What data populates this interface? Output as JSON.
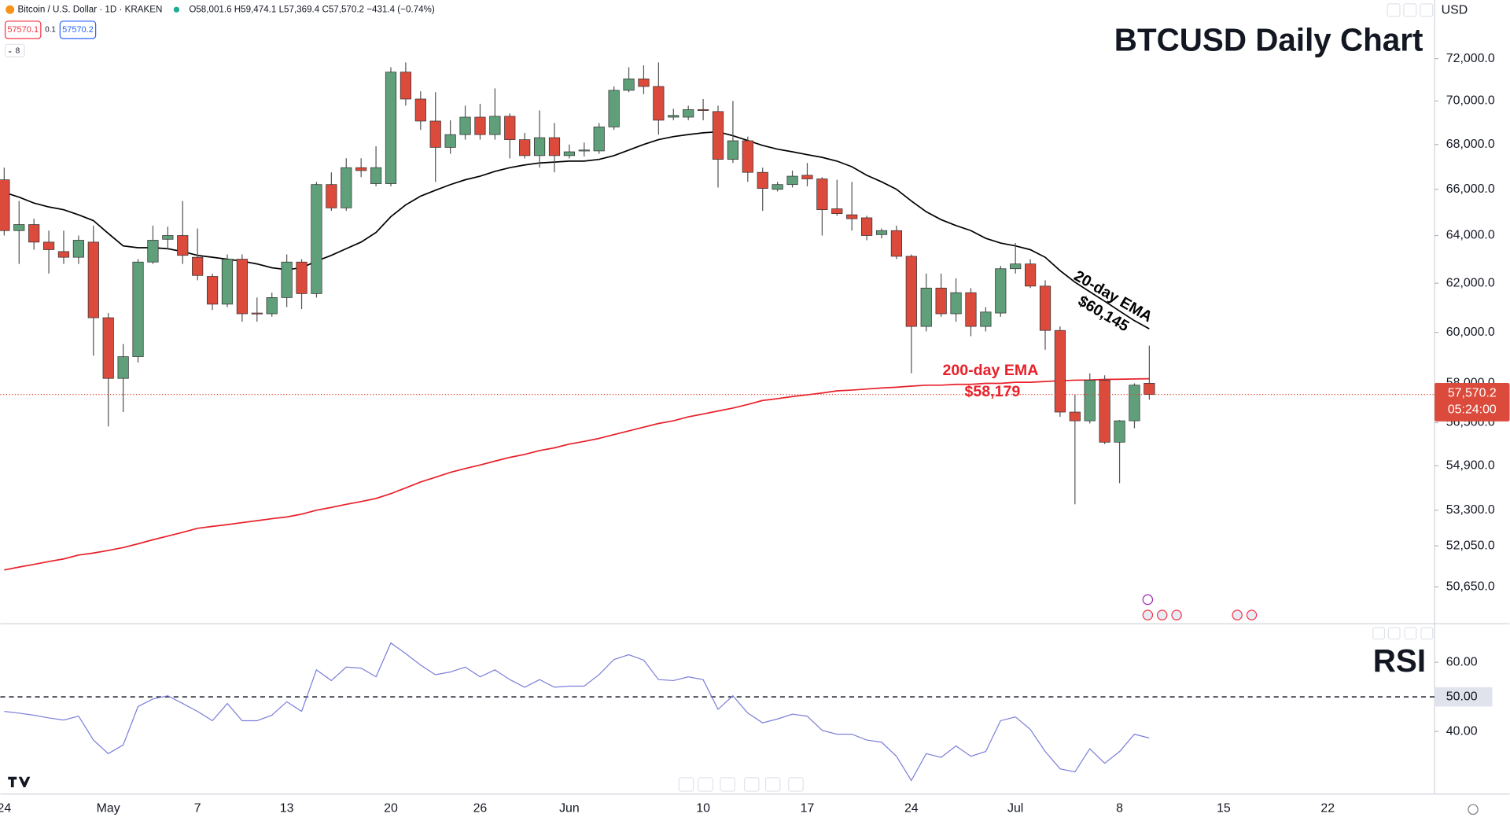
{
  "chart_data": [
    {
      "type": "candlestick",
      "title": "BTCUSD Daily Chart",
      "symbol": "Bitcoin / U.S. Dollar · 1D · KRAKEN",
      "ohlc_text": "O58,001.6 H59,474.1 L57,369.4 C57,570.2 −431.4 (−0.74%)",
      "bid": "57570.1",
      "spread": "0.1",
      "ask": "57570.2",
      "indicator_count": "8",
      "currency": "USD",
      "price_label": "57,570.2",
      "countdown": "05:24:00",
      "up_color": "#5f9f7a",
      "down_color": "#dc4a3b",
      "wick_color": "#555555",
      "yscale": "log",
      "ylim": [
        49420,
        74870
      ],
      "yticks": [
        {
          "value": 72000,
          "label": "72,000.0"
        },
        {
          "value": 70000,
          "label": "70,000.0"
        },
        {
          "value": 68000,
          "label": "68,000.0"
        },
        {
          "value": 66000,
          "label": "66,000.0"
        },
        {
          "value": 64000,
          "label": "64,000.0"
        },
        {
          "value": 62000,
          "label": "62,000.0"
        },
        {
          "value": 60000,
          "label": "60,000.0"
        },
        {
          "value": 58000,
          "label": "58,000.0"
        },
        {
          "value": 56500,
          "label": "56,500.0"
        },
        {
          "value": 54900,
          "label": "54,900.0"
        },
        {
          "value": 53300,
          "label": "53,300.0"
        },
        {
          "value": 52050,
          "label": "52,050.0"
        },
        {
          "value": 50650,
          "label": "50,650.0"
        }
      ],
      "categories": [
        "24",
        null,
        null,
        null,
        null,
        null,
        null,
        "May",
        null,
        null,
        null,
        null,
        null,
        "7",
        null,
        null,
        null,
        null,
        null,
        "13",
        null,
        null,
        null,
        null,
        null,
        null,
        "20",
        null,
        null,
        null,
        null,
        null,
        "26",
        null,
        null,
        null,
        null,
        null,
        "Jun",
        null,
        null,
        null,
        null,
        null,
        null,
        null,
        null,
        "10",
        null,
        null,
        null,
        null,
        null,
        null,
        "17",
        null,
        null,
        null,
        null,
        null,
        null,
        "24",
        null,
        null,
        null,
        null,
        null,
        null,
        "Jul",
        null,
        null,
        null,
        null,
        null,
        null,
        "8",
        null,
        null,
        null,
        null,
        null,
        null,
        "15",
        null,
        null,
        null,
        null,
        null,
        null,
        "22",
        null,
        null,
        null,
        null,
        null,
        null,
        null
      ],
      "open": [
        66420,
        64210,
        64470,
        63720,
        63320,
        63080,
        63720,
        60590,
        58190,
        59040,
        62880,
        63840,
        64000,
        63080,
        62280,
        61140,
        63000,
        60780,
        60750,
        61410,
        62880,
        61570,
        66210,
        65190,
        66960,
        66250,
        66250,
        71360,
        70090,
        69070,
        67870,
        68450,
        69250,
        68450,
        69290,
        68220,
        67500,
        68310,
        67500,
        67710,
        67710,
        68800,
        70500,
        71040,
        70680,
        69250,
        69250,
        69600,
        69510,
        67330,
        68170,
        66750,
        66000,
        66210,
        66620,
        66460,
        65150,
        64890,
        64760,
        64040,
        64210,
        63120,
        60240,
        61800,
        60750,
        61610,
        60240,
        60780,
        62600,
        62800,
        61880,
        60080,
        56900,
        56570,
        58120,
        55770,
        56570,
        58001.6,
        null,
        null,
        null,
        null,
        null,
        null,
        null,
        null,
        null,
        null,
        null,
        null,
        null,
        null,
        null,
        null,
        null,
        null,
        null
      ],
      "high": [
        66960,
        65490,
        64720,
        64210,
        64210,
        64000,
        64420,
        60780,
        59540,
        63000,
        64420,
        64380,
        65490,
        64300,
        62400,
        63200,
        63200,
        61410,
        61610,
        63200,
        63000,
        66330,
        66750,
        67380,
        67380,
        67920,
        71590,
        71820,
        70450,
        70410,
        69110,
        69780,
        69870,
        70590,
        69420,
        68530,
        69560,
        68980,
        68000,
        68090,
        68980,
        70680,
        71590,
        71680,
        71820,
        69640,
        69780,
        70090,
        69780,
        70000,
        68360,
        66960,
        66330,
        66830,
        67170,
        66540,
        66420,
        66330,
        64850,
        64300,
        64420,
        63200,
        62400,
        62400,
        62200,
        61800,
        61020,
        62720,
        63680,
        63000,
        62120,
        60240,
        57560,
        58390,
        58310,
        56600,
        58000,
        59474.1,
        null,
        null,
        null,
        null,
        null,
        null,
        null,
        null,
        null,
        null,
        null,
        null,
        null,
        null,
        null,
        null,
        null,
        null,
        null
      ],
      "low": [
        64000,
        62800,
        63400,
        62400,
        62800,
        62800,
        59080,
        56360,
        56900,
        58810,
        62800,
        63400,
        62800,
        62120,
        60900,
        61020,
        60430,
        60430,
        60630,
        61020,
        60940,
        61410,
        65060,
        65060,
        66540,
        66130,
        66130,
        69780,
        68670,
        66330,
        67580,
        68220,
        68220,
        68220,
        67370,
        67370,
        66960,
        66750,
        67370,
        67460,
        67580,
        68670,
        70410,
        70320,
        68450,
        69110,
        69110,
        69110,
        66080,
        67170,
        66330,
        65060,
        65910,
        66080,
        66130,
        64000,
        64850,
        64210,
        63800,
        63880,
        63000,
        58390,
        60040,
        60630,
        60430,
        59850,
        60040,
        60630,
        62400,
        61800,
        59310,
        56720,
        53510,
        56470,
        55700,
        54270,
        56290,
        57369.4,
        null,
        null,
        null,
        null,
        null,
        null,
        null,
        null,
        null,
        null,
        null,
        null,
        null,
        null,
        null,
        null,
        null,
        null,
        null
      ],
      "close": [
        64210,
        64470,
        63720,
        63400,
        63080,
        63800,
        60590,
        58190,
        59040,
        62880,
        63800,
        64000,
        63160,
        62320,
        61140,
        63000,
        60750,
        60750,
        61410,
        62880,
        61570,
        66210,
        65190,
        66960,
        66830,
        66960,
        71360,
        70090,
        69070,
        67870,
        68450,
        69250,
        68450,
        69290,
        68220,
        67500,
        68310,
        67500,
        67670,
        67750,
        68800,
        70500,
        71040,
        70680,
        69110,
        69330,
        69600,
        69560,
        67330,
        68170,
        66750,
        66040,
        66210,
        66580,
        66460,
        65110,
        64940,
        64720,
        64000,
        64210,
        63120,
        60240,
        61800,
        60750,
        61610,
        60240,
        60820,
        62600,
        62800,
        61880,
        60080,
        56900,
        56570,
        58120,
        55770,
        56570,
        57930,
        57570.2,
        null,
        null,
        null,
        null,
        null,
        null,
        null,
        null,
        null,
        null,
        null,
        null,
        null,
        null,
        null,
        null,
        null,
        null,
        null
      ],
      "series": [
        {
          "name": "20-day EMA",
          "color": "#000000",
          "values": [
            65870,
            65660,
            65400,
            65230,
            65110,
            64890,
            64640,
            64090,
            63560,
            63480,
            63480,
            63440,
            63320,
            63160,
            63080,
            63000,
            62920,
            62800,
            62640,
            62560,
            62640,
            62920,
            63160,
            63440,
            63720,
            64130,
            64810,
            65320,
            65700,
            65960,
            66210,
            66420,
            66580,
            66790,
            66960,
            67080,
            67170,
            67210,
            67250,
            67250,
            67330,
            67500,
            67750,
            68000,
            68220,
            68360,
            68450,
            68530,
            68580,
            68400,
            68180,
            67960,
            67790,
            67670,
            67540,
            67420,
            67250,
            67000,
            66620,
            66330,
            66000,
            65490,
            65020,
            64680,
            64430,
            64210,
            63880,
            63680,
            63560,
            63400,
            63080,
            62520,
            62040,
            61650,
            61260,
            60860,
            60470,
            60145,
            null,
            null,
            null,
            null,
            null,
            null,
            null,
            null,
            null,
            null,
            null,
            null,
            null,
            null,
            null,
            null,
            null,
            null,
            null
          ],
          "value_labels": [
            null,
            null,
            null,
            null,
            null,
            null,
            null,
            null,
            null,
            null,
            null,
            null,
            null,
            null,
            null,
            null,
            null,
            null,
            null,
            null,
            null,
            null,
            null,
            null,
            null,
            null,
            null,
            null,
            null,
            null,
            null,
            null,
            null,
            null,
            null,
            null,
            null,
            null,
            null,
            null,
            null,
            null,
            null,
            null,
            null,
            null,
            null,
            null,
            null,
            null,
            null,
            null,
            null,
            null,
            null,
            null,
            null,
            null,
            null,
            null,
            null,
            null,
            null,
            null,
            null,
            null,
            null,
            null,
            null,
            null,
            null,
            null,
            null,
            null,
            null,
            null,
            null,
            "$60,145",
            null,
            null,
            null,
            null,
            null,
            null,
            null,
            null,
            null,
            null,
            null,
            null,
            null,
            null,
            null,
            null,
            null,
            null,
            null
          ]
        },
        {
          "name": "200-day EMA",
          "color": "#e8202a",
          "values": [
            51220,
            51320,
            51410,
            51510,
            51600,
            51730,
            51800,
            51890,
            51990,
            52120,
            52260,
            52390,
            52520,
            52660,
            52730,
            52790,
            52860,
            52930,
            53000,
            53060,
            53160,
            53300,
            53400,
            53510,
            53610,
            53720,
            53890,
            54100,
            54310,
            54480,
            54660,
            54800,
            54930,
            55070,
            55210,
            55320,
            55460,
            55560,
            55700,
            55800,
            55910,
            56050,
            56190,
            56330,
            56470,
            56570,
            56720,
            56830,
            56940,
            57050,
            57190,
            57340,
            57410,
            57490,
            57560,
            57630,
            57710,
            57740,
            57780,
            57820,
            57850,
            57890,
            57930,
            57930,
            57960,
            57960,
            58000,
            58000,
            58040,
            58040,
            58070,
            58100,
            58120,
            58130,
            58150,
            58160,
            58170,
            58179,
            null,
            null,
            null,
            null,
            null,
            null,
            null,
            null,
            null,
            null,
            null,
            null,
            null,
            null,
            null,
            null,
            null,
            null,
            null
          ],
          "value_labels": [
            null,
            null,
            null,
            null,
            null,
            null,
            null,
            null,
            null,
            null,
            null,
            null,
            null,
            null,
            null,
            null,
            null,
            null,
            null,
            null,
            null,
            null,
            null,
            null,
            null,
            null,
            null,
            null,
            null,
            null,
            null,
            null,
            null,
            null,
            null,
            null,
            null,
            null,
            null,
            null,
            null,
            null,
            null,
            null,
            null,
            null,
            null,
            null,
            null,
            null,
            null,
            null,
            null,
            null,
            null,
            null,
            null,
            null,
            null,
            null,
            null,
            null,
            null,
            null,
            null,
            null,
            null,
            null,
            null,
            null,
            null,
            null,
            null,
            null,
            null,
            null,
            null,
            "$58,179",
            null,
            null,
            null,
            null,
            null,
            null,
            null,
            null,
            null,
            null,
            null,
            null,
            null,
            null,
            null,
            null,
            null,
            null,
            null
          ]
        }
      ]
    },
    {
      "type": "line",
      "title": "RSI",
      "ylim": [
        21.9,
        70.6
      ],
      "yticks": [
        {
          "value": 60,
          "label": "60.00"
        },
        {
          "value": 40,
          "label": "40.00"
        }
      ],
      "reference": {
        "value": 50,
        "label": "50.00"
      },
      "series": [
        {
          "color": "#7b7fd8",
          "values": [
            45.8,
            45.3,
            44.7,
            43.9,
            43.3,
            44.4,
            37.5,
            33.6,
            36.1,
            47.2,
            49.4,
            50.3,
            48.1,
            45.8,
            43.1,
            48.1,
            43.1,
            43.1,
            44.7,
            48.6,
            45.8,
            57.8,
            54.7,
            58.6,
            58.3,
            55.8,
            65.6,
            62.5,
            59.2,
            56.4,
            57.2,
            58.6,
            55.8,
            57.8,
            55.0,
            52.8,
            55.0,
            52.8,
            53.1,
            53.1,
            56.4,
            60.8,
            62.2,
            60.6,
            55.0,
            54.7,
            55.8,
            55.0,
            46.4,
            50.3,
            45.3,
            42.5,
            43.6,
            45.0,
            44.4,
            40.3,
            39.2,
            39.2,
            37.5,
            36.9,
            32.8,
            25.8,
            33.6,
            32.5,
            35.8,
            32.8,
            34.2,
            43.1,
            44.2,
            40.6,
            34.2,
            29.2,
            28.3,
            35.0,
            30.8,
            34.2,
            39.2,
            38.1,
            null,
            null,
            null,
            null,
            null,
            null,
            null,
            null,
            null,
            null,
            null,
            null,
            null,
            null,
            null,
            null,
            null,
            null,
            null
          ]
        }
      ]
    }
  ]
}
